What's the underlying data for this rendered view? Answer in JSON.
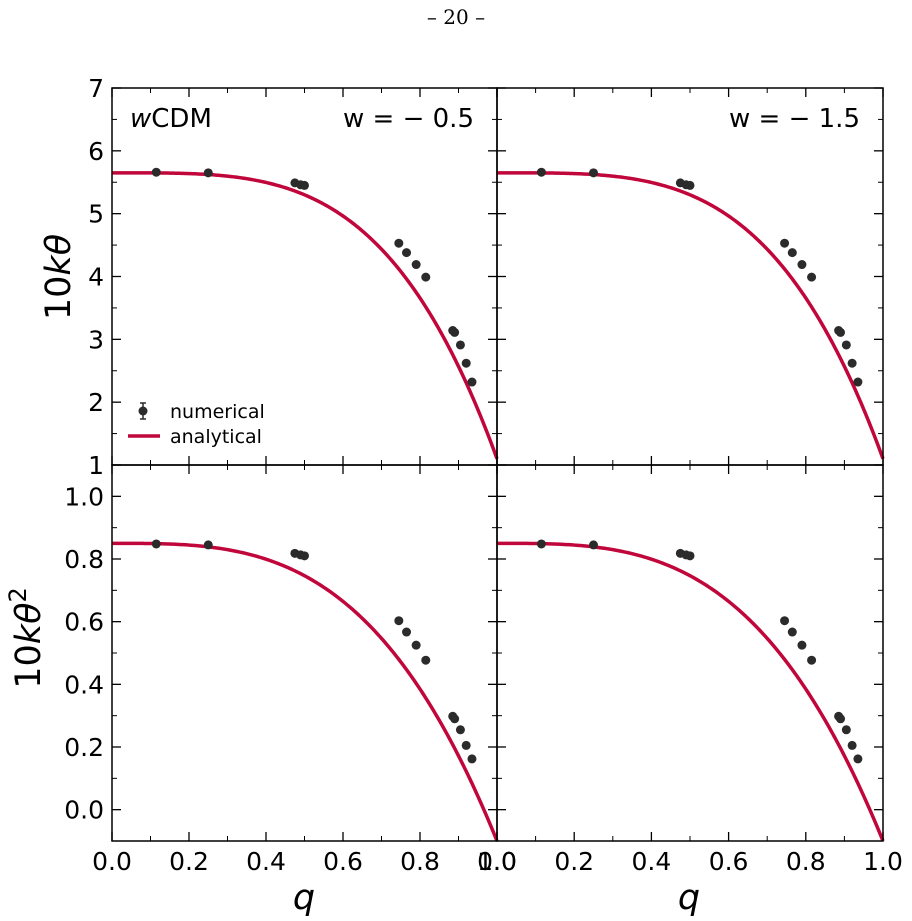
{
  "page_number": "– 20 –",
  "colors": {
    "analytical": "#c0063a",
    "numerical": "#2b2b2b",
    "frame": "#000000"
  },
  "legend": {
    "numerical": "numerical",
    "analytical": "analytical",
    "placement": "lower-left of top-left panel"
  },
  "panel_labels": {
    "model": "wCDM",
    "left": "w = − 0.5",
    "right": "w = − 1.5"
  },
  "chart_data": [
    {
      "type": "line",
      "panel": "top-left",
      "ylabel": "10kθ",
      "xlim": [
        0,
        1
      ],
      "ylim": [
        1,
        7
      ],
      "yticks": [
        "1",
        "2",
        "3",
        "4",
        "5",
        "6",
        "7"
      ],
      "analytical": {
        "q0": 5.65,
        "exponent": 3.7
      },
      "numerical": {
        "x": [
          0.115,
          0.25,
          0.475,
          0.49,
          0.5,
          0.745,
          0.765,
          0.79,
          0.815,
          0.885,
          0.89,
          0.905,
          0.92,
          0.935
        ],
        "y": [
          5.66,
          5.65,
          5.49,
          5.46,
          5.45,
          4.53,
          4.38,
          4.19,
          3.99,
          3.14,
          3.11,
          2.91,
          2.62,
          2.32
        ]
      },
      "grid": false
    },
    {
      "type": "line",
      "panel": "top-right",
      "xlim": [
        0,
        1
      ],
      "ylim": [
        1,
        7
      ],
      "analytical": {
        "q0": 5.65,
        "exponent": 3.7
      },
      "numerical": {
        "x": [
          0.115,
          0.25,
          0.475,
          0.49,
          0.5,
          0.745,
          0.765,
          0.79,
          0.815,
          0.885,
          0.89,
          0.905,
          0.92,
          0.935
        ],
        "y": [
          5.66,
          5.65,
          5.49,
          5.46,
          5.45,
          4.53,
          4.38,
          4.19,
          3.99,
          3.14,
          3.11,
          2.91,
          2.62,
          2.32
        ]
      },
      "grid": false
    },
    {
      "type": "line",
      "panel": "bottom-left",
      "ylabel": "10kθ²",
      "xlabel": "q",
      "xlim": [
        0,
        1
      ],
      "ylim": [
        -0.1,
        1.1
      ],
      "yticks": [
        "0.0",
        "0.2",
        "0.4",
        "0.6",
        "0.8",
        "1.0"
      ],
      "xticks": [
        "0.0",
        "0.2",
        "0.4",
        "0.6",
        "0.8",
        "1.0"
      ],
      "analytical": {
        "q0": 0.85,
        "exponent": 3.2
      },
      "numerical": {
        "x": [
          0.115,
          0.25,
          0.475,
          0.49,
          0.5,
          0.745,
          0.765,
          0.79,
          0.815,
          0.885,
          0.89,
          0.905,
          0.92,
          0.935
        ],
        "y": [
          0.848,
          0.845,
          0.818,
          0.813,
          0.81,
          0.603,
          0.567,
          0.525,
          0.477,
          0.298,
          0.29,
          0.255,
          0.205,
          0.162
        ]
      },
      "grid": false
    },
    {
      "type": "line",
      "panel": "bottom-right",
      "xlabel": "q",
      "xlim": [
        0,
        1
      ],
      "ylim": [
        -0.1,
        1.1
      ],
      "xticks": [
        "0.0",
        "0.2",
        "0.4",
        "0.6",
        "0.8",
        "1.0"
      ],
      "analytical": {
        "q0": 0.85,
        "exponent": 3.2
      },
      "numerical": {
        "x": [
          0.115,
          0.25,
          0.475,
          0.49,
          0.5,
          0.745,
          0.765,
          0.79,
          0.815,
          0.885,
          0.89,
          0.905,
          0.92,
          0.935
        ],
        "y": [
          0.848,
          0.845,
          0.818,
          0.813,
          0.81,
          0.603,
          0.567,
          0.525,
          0.477,
          0.298,
          0.29,
          0.255,
          0.205,
          0.162
        ]
      },
      "grid": false
    }
  ]
}
